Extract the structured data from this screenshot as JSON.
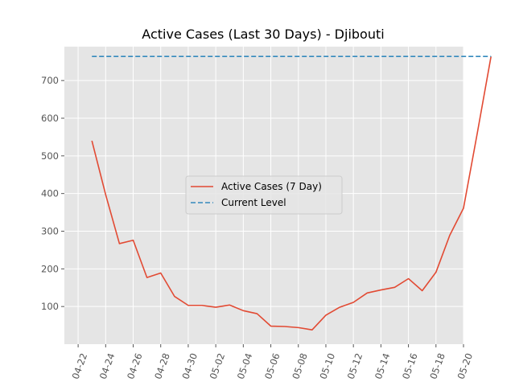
{
  "chart_data": {
    "type": "line",
    "title": "Active Cases (Last 30 Days) - Djibouti",
    "xlabel": "",
    "ylabel": "",
    "xlim": [
      "2020-04-21",
      "2020-05-20"
    ],
    "ylim": [
      0,
      790
    ],
    "x_tick_labels": [
      "04-22",
      "04-24",
      "04-26",
      "04-28",
      "04-30",
      "05-02",
      "05-04",
      "05-06",
      "05-08",
      "05-10",
      "05-12",
      "05-14",
      "05-16",
      "05-18",
      "05-20"
    ],
    "y_ticks": [
      100,
      200,
      300,
      400,
      500,
      600,
      700
    ],
    "grid": true,
    "legend_position": "center",
    "series": [
      {
        "name": "Active Cases (7 Day)",
        "color": "#e24a33",
        "style": "solid",
        "points": [
          [
            "2020-04-23",
            540
          ],
          [
            "2020-04-24",
            397
          ],
          [
            "2020-04-25",
            267
          ],
          [
            "2020-04-26",
            276
          ],
          [
            "2020-04-27",
            177
          ],
          [
            "2020-04-28",
            189
          ],
          [
            "2020-04-29",
            127
          ],
          [
            "2020-04-30",
            103
          ],
          [
            "2020-05-01",
            103
          ],
          [
            "2020-05-02",
            98
          ],
          [
            "2020-05-03",
            104
          ],
          [
            "2020-05-04",
            89
          ],
          [
            "2020-05-05",
            81
          ],
          [
            "2020-05-06",
            48
          ],
          [
            "2020-05-07",
            47
          ],
          [
            "2020-05-08",
            44
          ],
          [
            "2020-05-09",
            38
          ],
          [
            "2020-05-10",
            77
          ],
          [
            "2020-05-11",
            98
          ],
          [
            "2020-05-12",
            111
          ],
          [
            "2020-05-13",
            136
          ],
          [
            "2020-05-14",
            144
          ],
          [
            "2020-05-15",
            151
          ],
          [
            "2020-05-16",
            174
          ],
          [
            "2020-05-17",
            142
          ],
          [
            "2020-05-18",
            191
          ],
          [
            "2020-05-19",
            289
          ],
          [
            "2020-05-20",
            361
          ],
          [
            "2020-05-21",
            560
          ],
          [
            "2020-05-22",
            764
          ]
        ]
      },
      {
        "name": "Current Level",
        "color": "#348abd",
        "style": "dashed",
        "points": [
          [
            "2020-04-23",
            764
          ],
          [
            "2020-05-22",
            764
          ]
        ]
      }
    ]
  }
}
